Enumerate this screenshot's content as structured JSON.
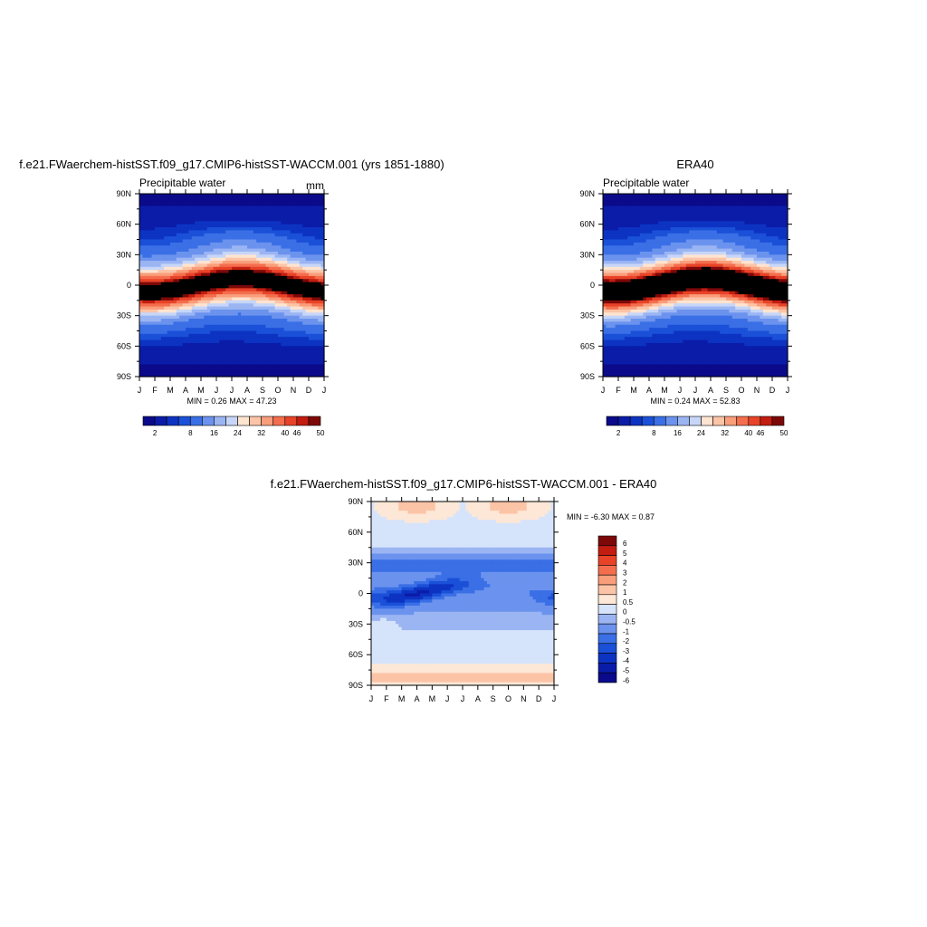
{
  "colors": {
    "panel_palette": [
      "#0a0a8a",
      "#0a1ca8",
      "#0d33c2",
      "#1b50d8",
      "#3a6fe6",
      "#6b93ee",
      "#9bb5f3",
      "#c7d6f8",
      "#ffe4d0",
      "#fcc4a7",
      "#f99d7a",
      "#f46e4e",
      "#e84328",
      "#c21d10",
      "#7d0808"
    ],
    "diff_palette": [
      "#0a0a8a",
      "#0a1ca8",
      "#0d33c2",
      "#1b50d8",
      "#3a6fe6",
      "#6b93ee",
      "#9bb5f3",
      "#d6e4fb",
      "#fde7d6",
      "#fcc4a7",
      "#f99d7a",
      "#f46e4e",
      "#e84328",
      "#c21d10",
      "#7d0808"
    ]
  },
  "chart_data": [
    {
      "type": "heatmap",
      "title": "f.e21.FWaerchem-histSST.f09_g17.CMIP6-histSST-WACCM.001 (yrs 1851-1880)",
      "subtitle_left": "Precipitable water",
      "subtitle_right": "mm",
      "x_tick_labels": [
        "J",
        "F",
        "M",
        "A",
        "M",
        "J",
        "J",
        "A",
        "S",
        "O",
        "N",
        "D",
        "J"
      ],
      "y_tick_labels": [
        "90N",
        "60N",
        "30N",
        "0",
        "30S",
        "60S",
        "90S"
      ],
      "ylim": [
        -90,
        90
      ],
      "stats": "MIN =   0.26 MAX =  47.23",
      "min": 0.26,
      "max": 47.23,
      "colorbar_labels": [
        "2",
        "8",
        "16",
        "24",
        "32",
        "40",
        "46",
        "50"
      ],
      "colorbar_levels": [
        2,
        4,
        6,
        8,
        12,
        16,
        20,
        24,
        28,
        32,
        36,
        40,
        44,
        46,
        48,
        50
      ],
      "itcz_amplitude": 1.0
    },
    {
      "type": "heatmap",
      "title": "ERA40",
      "subtitle_left": "Precipitable water",
      "x_tick_labels": [
        "J",
        "F",
        "M",
        "A",
        "M",
        "J",
        "J",
        "A",
        "S",
        "O",
        "N",
        "D",
        "J"
      ],
      "y_tick_labels": [
        "90N",
        "60N",
        "30N",
        "0",
        "30S",
        "60S",
        "90S"
      ],
      "ylim": [
        -90,
        90
      ],
      "stats": "MIN =   0.24 MAX =  52.83",
      "min": 0.24,
      "max": 52.83,
      "colorbar_labels": [
        "2",
        "8",
        "16",
        "24",
        "32",
        "40",
        "46",
        "50"
      ],
      "colorbar_levels": [
        2,
        4,
        6,
        8,
        12,
        16,
        20,
        24,
        28,
        32,
        36,
        40,
        44,
        46,
        48,
        50
      ],
      "itcz_amplitude": 1.12
    },
    {
      "type": "heatmap",
      "title": "f.e21.FWaerchem-histSST.f09_g17.CMIP6-histSST-WACCM.001 - ERA40",
      "x_tick_labels": [
        "J",
        "F",
        "M",
        "A",
        "M",
        "J",
        "J",
        "A",
        "S",
        "O",
        "N",
        "D",
        "J"
      ],
      "y_tick_labels": [
        "90N",
        "60N",
        "30N",
        "0",
        "30S",
        "60S",
        "90S"
      ],
      "ylim": [
        -90,
        90
      ],
      "stats": "MIN =  -6.30 MAX =   0.87",
      "min": -6.3,
      "max": 0.87,
      "colorbar_labels": [
        "6",
        "5",
        "4",
        "3",
        "2",
        "1",
        "0.5",
        "0",
        "-0.5",
        "-1",
        "-2",
        "-3",
        "-4",
        "-5",
        "-6"
      ],
      "colorbar_levels": [
        -6,
        -5,
        -4,
        -3,
        -2,
        -1,
        -0.5,
        0,
        0.5,
        1,
        2,
        3,
        4,
        5,
        6
      ]
    }
  ]
}
